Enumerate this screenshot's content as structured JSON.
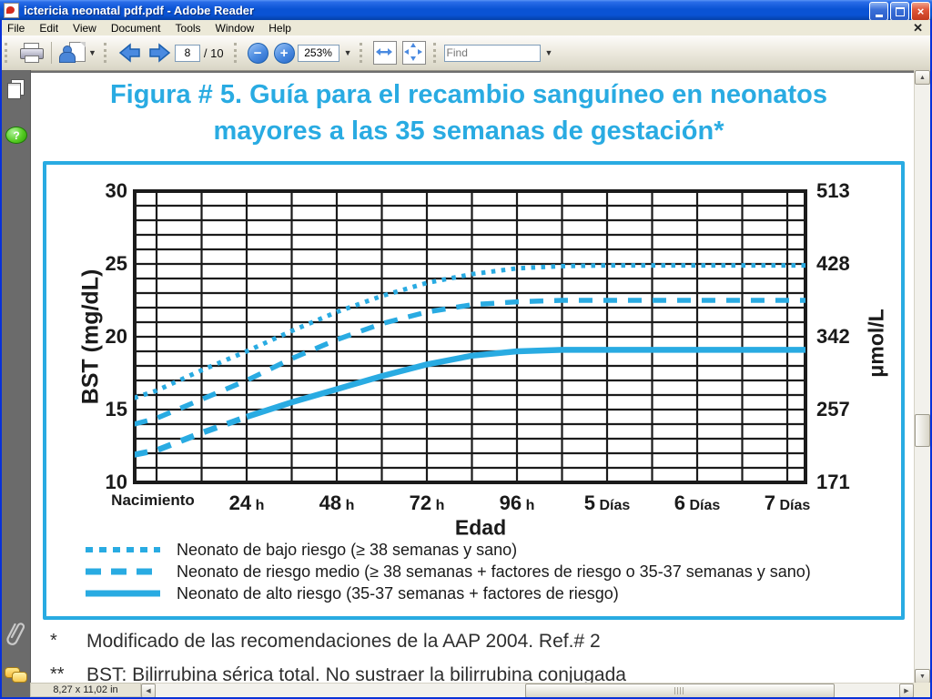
{
  "window": {
    "title": "ictericia neonatal pdf.pdf - Adobe Reader"
  },
  "menu": {
    "items": [
      "File",
      "Edit",
      "View",
      "Document",
      "Tools",
      "Window",
      "Help"
    ]
  },
  "toolbar": {
    "page_current": "8",
    "page_total": "/ 10",
    "zoom_level": "253%",
    "find_placeholder": "Find"
  },
  "statusbar": {
    "page_size": "8,27 x 11,02 in"
  },
  "colors": {
    "accent_cyan": "#29ABE2",
    "grid_black": "#1b1b1b",
    "titlebar_blue": "#0A53D4",
    "close_red": "#D9452A"
  },
  "document": {
    "title_line1": "Figura # 5. Guía para el recambio sanguíneo en neonatos",
    "title_line2": "mayores a las 35 semanas de gestación*",
    "footnotes": [
      {
        "marker": "*",
        "text": "Modificado de las recomendaciones de la AAP 2004. Ref.# 2"
      },
      {
        "marker": "**",
        "text": "BST: Bilirrubina sérica total. No sustraer la  bilirrubina conjugada"
      }
    ]
  },
  "chart_data": {
    "type": "line",
    "xlabel": "Edad",
    "ylabel_left": "BST (mg/dL)",
    "ylabel_right": "μmol/L",
    "x_unit": "hours",
    "xlim": [
      -6,
      173
    ],
    "ylim": [
      10,
      30
    ],
    "grid": {
      "x_step_hours": 12,
      "y_step": 1,
      "visible": true
    },
    "legend_position": "below",
    "y_ticks_left": [
      30,
      25,
      20,
      15,
      10
    ],
    "y_ticks_right": [
      "513",
      "428",
      "342",
      "257",
      "171"
    ],
    "x_ticks": [
      {
        "hour": 0,
        "label": "Nacimiento"
      },
      {
        "hour": 24,
        "num": "24",
        "unit": "h"
      },
      {
        "hour": 48,
        "num": "48",
        "unit": "h"
      },
      {
        "hour": 72,
        "num": "72",
        "unit": "h"
      },
      {
        "hour": 96,
        "num": "96",
        "unit": "h"
      },
      {
        "hour": 120,
        "num": "5",
        "unit": "Días"
      },
      {
        "hour": 144,
        "num": "6",
        "unit": "Días"
      },
      {
        "hour": 168,
        "num": "7",
        "unit": "Días"
      }
    ],
    "x": [
      -6,
      0,
      12,
      24,
      36,
      48,
      60,
      72,
      84,
      96,
      108,
      120,
      144,
      168,
      173
    ],
    "series": [
      {
        "name": "Neonato de bajo riesgo (≥ 38 semanas y sano)",
        "style": "dotted",
        "values": [
          15.8,
          16.3,
          17.7,
          19.0,
          20.4,
          21.7,
          22.8,
          23.7,
          24.3,
          24.7,
          24.85,
          24.9,
          24.9,
          24.9,
          24.9
        ]
      },
      {
        "name": "Neonato de riesgo medio (≥ 38 semanas + factores de riesgo o 35-37 semanas y sano)",
        "style": "dashed",
        "values": [
          14.0,
          14.4,
          15.7,
          17.0,
          18.5,
          19.8,
          20.9,
          21.7,
          22.2,
          22.4,
          22.5,
          22.5,
          22.5,
          22.5,
          22.5
        ]
      },
      {
        "name": "Neonato de alto riesgo (35-37 semanas + factores de riesgo)",
        "style": "solid",
        "solid_from_hour": 24,
        "values": [
          11.9,
          12.2,
          13.4,
          14.5,
          15.5,
          16.4,
          17.3,
          18.1,
          18.7,
          19.0,
          19.1,
          19.1,
          19.1,
          19.1,
          19.1
        ]
      }
    ]
  }
}
